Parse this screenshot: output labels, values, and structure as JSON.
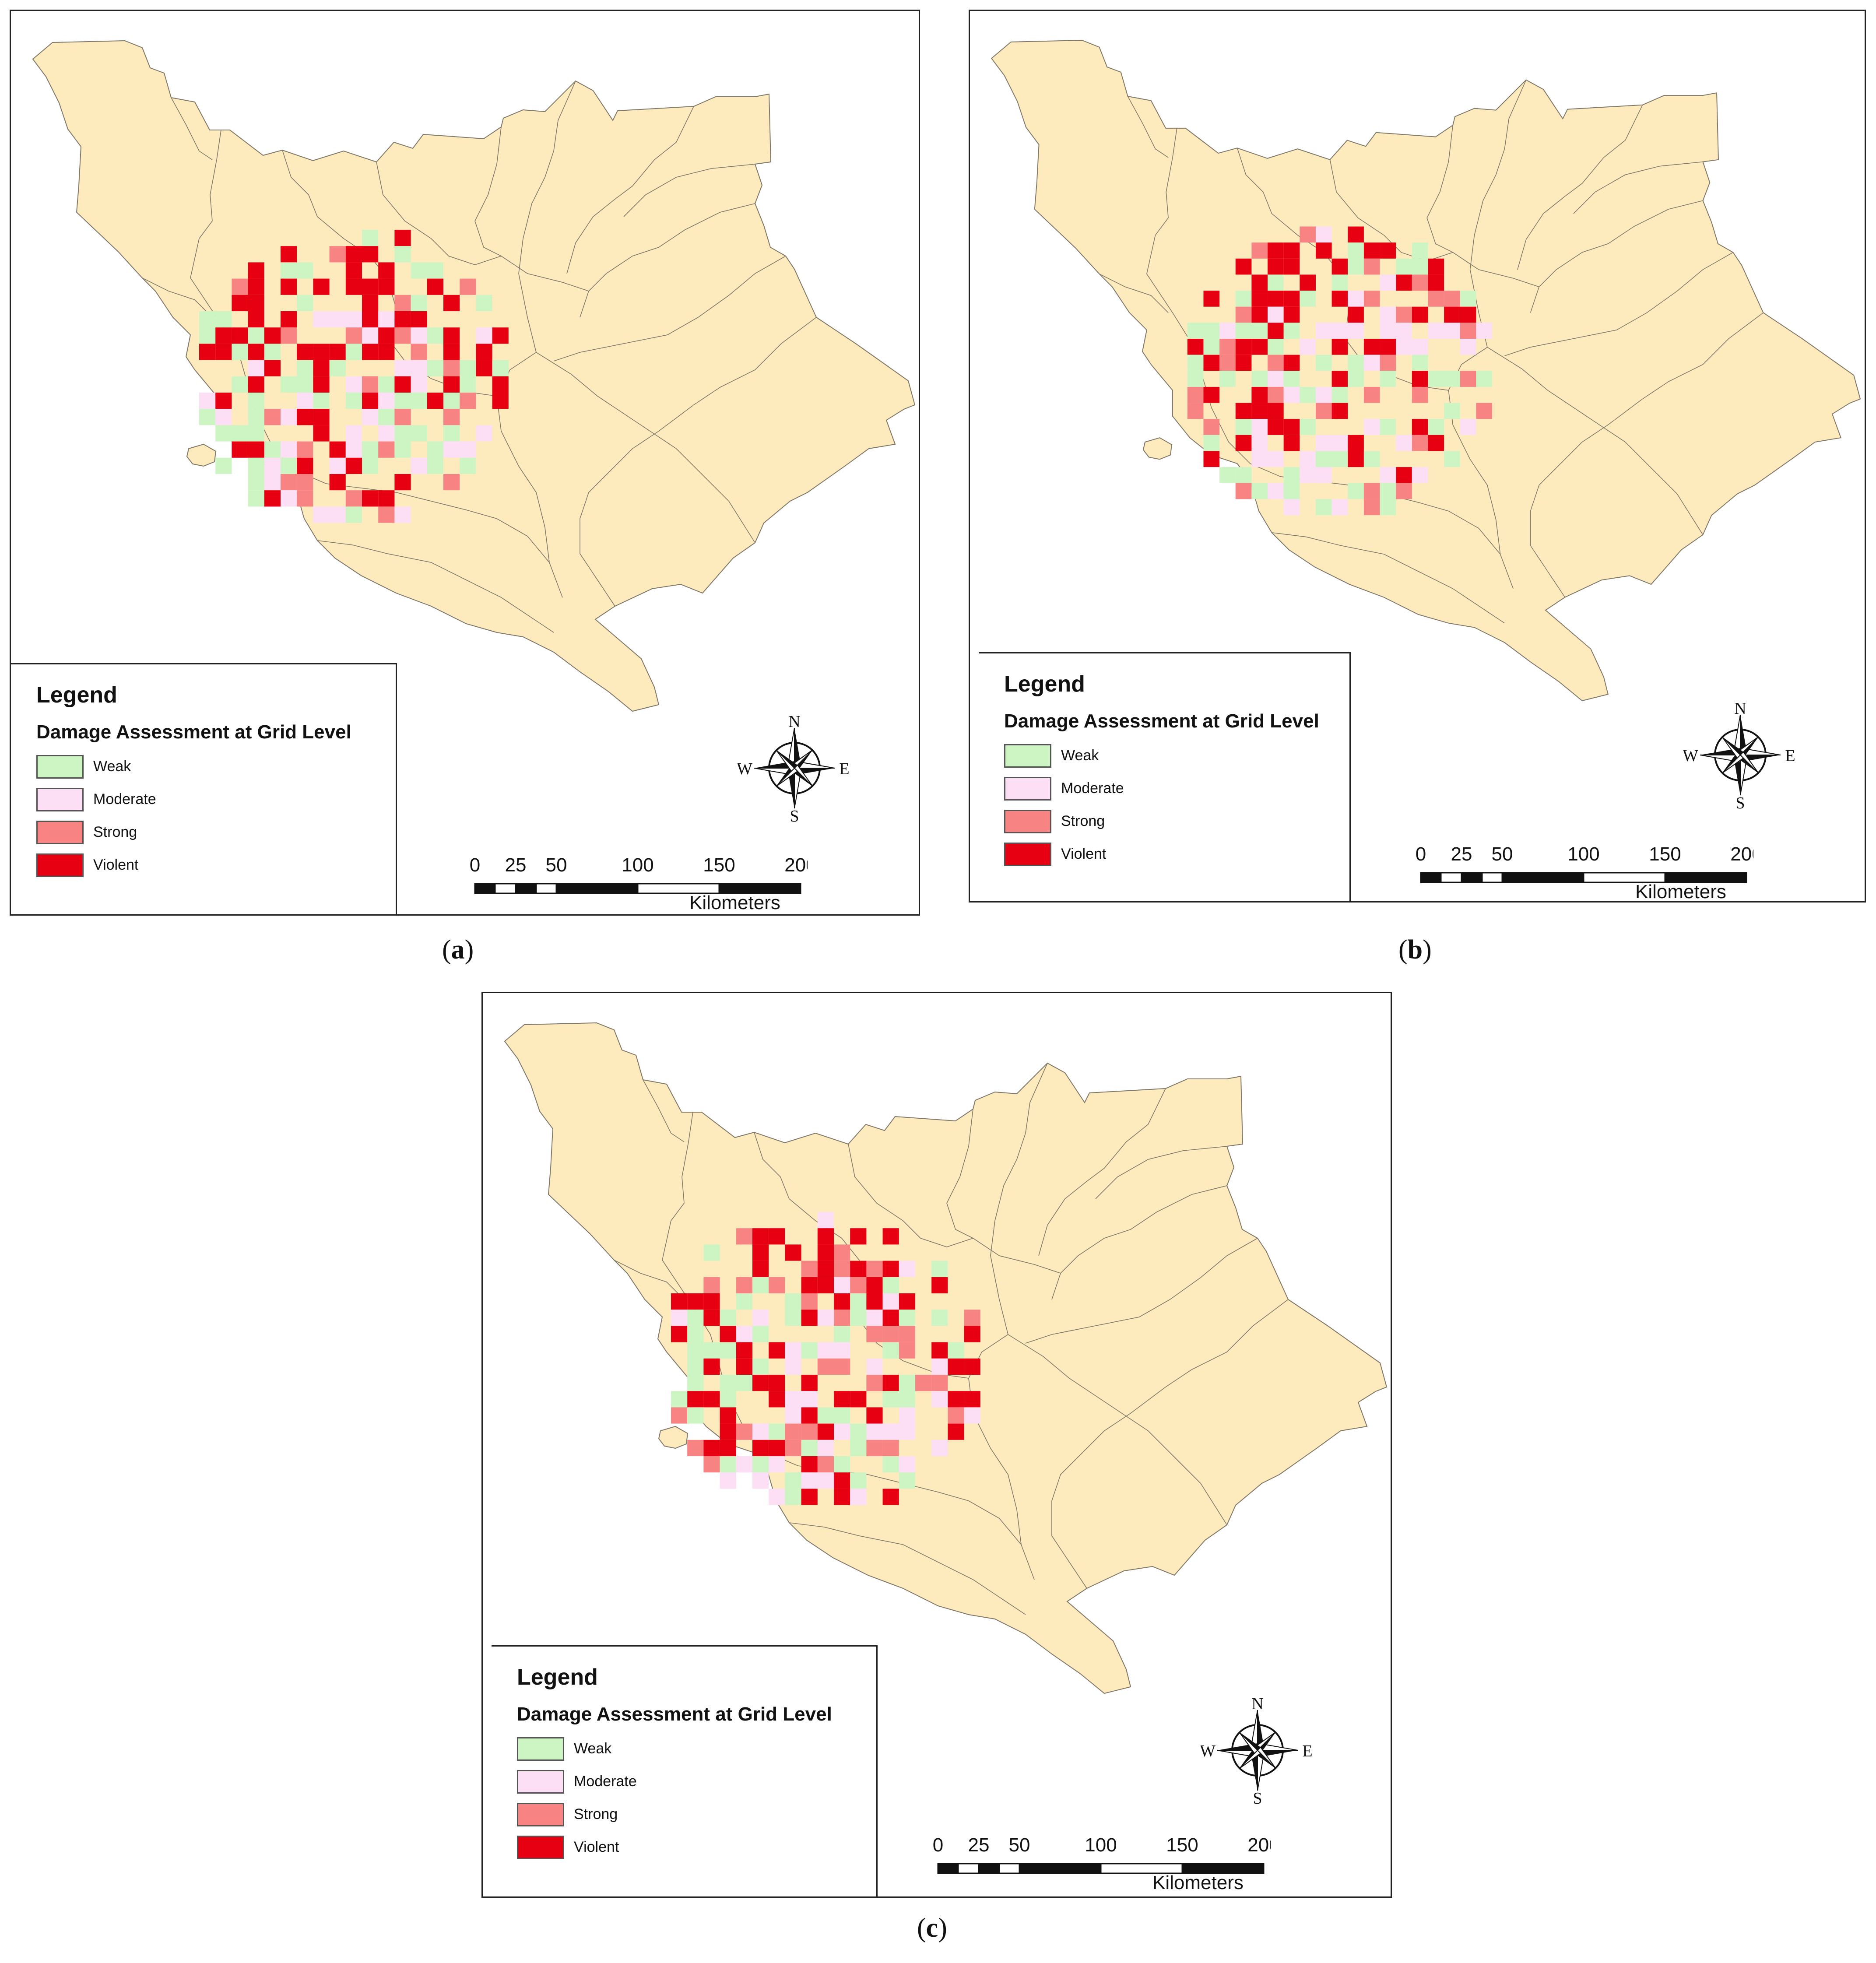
{
  "legend": {
    "title": "Legend",
    "subtitle": "Damage Assessment at Grid Level",
    "classes": [
      {
        "label": "Weak",
        "color": "#ccf5c3"
      },
      {
        "label": "Moderate",
        "color": "#fcdff4"
      },
      {
        "label": "Strong",
        "color": "#f78383"
      },
      {
        "label": "Violent",
        "color": "#e60012"
      }
    ]
  },
  "compass": {
    "n": "N",
    "s": "S",
    "e": "E",
    "w": "W"
  },
  "scale": {
    "ticks": [
      "0",
      "25",
      "50",
      "100",
      "150",
      "200"
    ],
    "unit": "Kilometers"
  },
  "colors": {
    "land": "#fdebbd",
    "boundary": "#7f7768",
    "border": "#222222"
  },
  "panels": [
    {
      "id": "a",
      "caption_open": "(",
      "caption_letter": "a",
      "caption_close": ")"
    },
    {
      "id": "b",
      "caption_open": "(",
      "caption_letter": "b",
      "caption_close": ")"
    },
    {
      "id": "c",
      "caption_open": "(",
      "caption_letter": "c",
      "caption_close": ")"
    }
  ]
}
